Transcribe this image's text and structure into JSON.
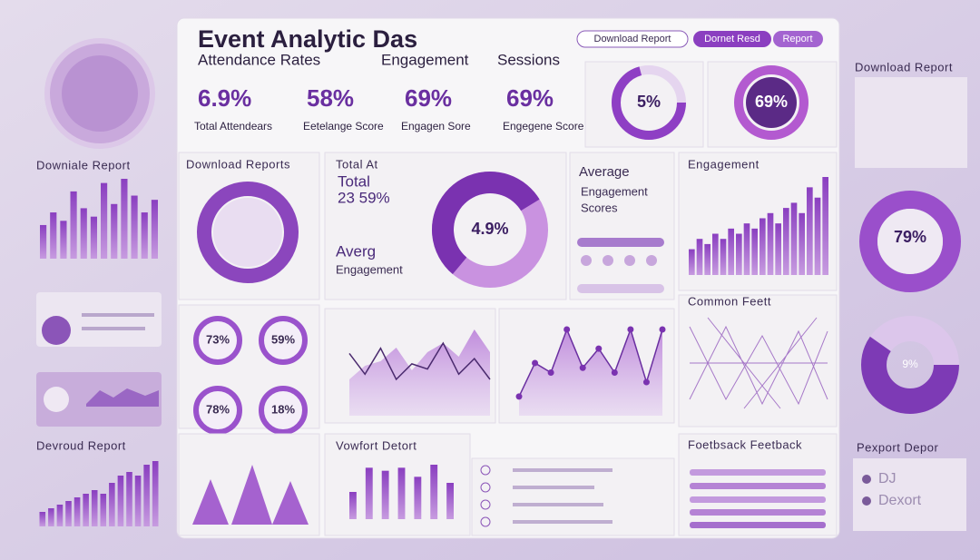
{
  "header": {
    "title": "Event Analytic Das",
    "tabs": [
      "Attendance Rates",
      "Engagement",
      "Sessions"
    ],
    "buttons": [
      "Download Report",
      "Dornet Resd",
      "Report"
    ]
  },
  "kpis": [
    {
      "value": "6.9%",
      "label": "Total Attendears"
    },
    {
      "value": "58%",
      "label": "Eetelange Score"
    },
    {
      "value": "69%",
      "label": "Engagen Sore"
    },
    {
      "value": "69%",
      "label": "Engegene Score"
    }
  ],
  "top_rings": [
    "5%",
    "69%"
  ],
  "panels": {
    "download_reports": "Download Reports",
    "total_title": "Total At",
    "total_label": "Total",
    "total_value": "23 59%",
    "avg_title": "Averg",
    "avg_sub": "Engagement",
    "donut_value": "4.9%",
    "average_scores": [
      "Average",
      "Engagement",
      "Scores"
    ],
    "engagement": "Engagement",
    "common": "Common Feett",
    "small_rings": [
      "73%",
      "59%",
      "78%",
      "18%"
    ],
    "vowfort": "Vowfort Detort",
    "feedback": "Foetbsack Feetback"
  },
  "left": {
    "report_1": "Downiale Report",
    "report_2": "Devroud Report"
  },
  "right": {
    "report": "Download Report",
    "ring_1": "79%",
    "ring_2": "9%",
    "export": "Pexport Depor",
    "items": [
      "DJ",
      "Dexort"
    ]
  },
  "charts": {
    "left_bars": [
      40,
      55,
      45,
      80,
      60,
      50,
      90,
      65,
      95,
      75,
      55,
      70
    ],
    "left_bars_2": [
      20,
      25,
      30,
      35,
      40,
      45,
      50,
      45,
      60,
      70,
      75,
      70,
      85,
      90
    ],
    "engagement_bars": [
      25,
      35,
      30,
      40,
      35,
      45,
      40,
      50,
      45,
      55,
      60,
      50,
      65,
      70,
      60,
      85,
      75,
      95
    ],
    "vowfort_bars": [
      45,
      85,
      80,
      85,
      70,
      90,
      60
    ],
    "line_1_area": [
      40,
      55,
      60,
      75,
      50,
      70,
      80,
      65,
      95,
      70
    ],
    "line_1_line": [
      60,
      40,
      65,
      35,
      50,
      45,
      70,
      40,
      55,
      35
    ],
    "line_2": [
      20,
      55,
      45,
      90,
      50,
      70,
      45,
      90,
      35,
      90
    ]
  }
}
